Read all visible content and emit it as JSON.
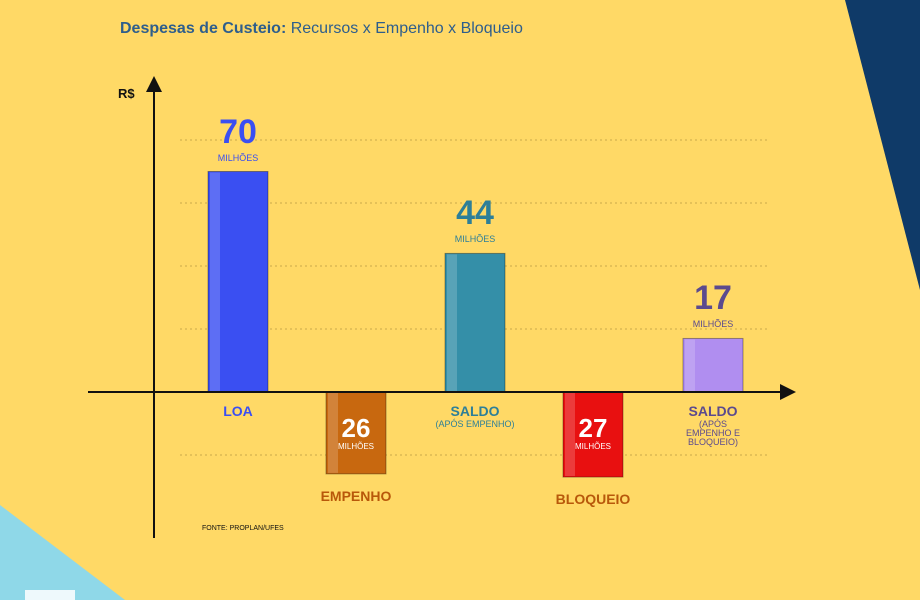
{
  "title_bold": "Despesas de Custeio:",
  "title_rest": " Recursos x Empenho x Bloqueio",
  "source": "FONTE: PROPLAN/UFES",
  "colors": {
    "background": "#ffd966",
    "navy": "#0f3a68",
    "cyan": "#8fd8e8"
  },
  "chart_data": {
    "type": "bar",
    "title": "Despesas de Custeio: Recursos x Empenho x Bloqueio",
    "ylabel": "R$",
    "unit": "MILHÕES",
    "ylim": [
      -40,
      110
    ],
    "grid": true,
    "bars": [
      {
        "value": 70,
        "display": "70",
        "unit_label": "MILHÕES",
        "category": "LOA",
        "sub": "",
        "color": "#3a4ff2",
        "label_color": "#3a4ff2",
        "value_color": "#3a4ff2"
      },
      {
        "value": -26,
        "display": "26",
        "unit_label": "MILHÕES",
        "category": "EMPENHO",
        "sub": "",
        "color": "#c8680f",
        "label_color": "#b8580a",
        "value_color": "#ffffff"
      },
      {
        "value": 44,
        "display": "44",
        "unit_label": "MILHÕES",
        "category": "SALDO",
        "sub": "(APÓS EMPENHO)",
        "color": "#348fa8",
        "label_color": "#2d7f98",
        "value_color": "#2d7f98"
      },
      {
        "value": -27,
        "display": "27",
        "unit_label": "MILHÕES",
        "category": "BLOQUEIO",
        "sub": "",
        "color": "#e81010",
        "label_color": "#b8580a",
        "value_color": "#ffffff"
      },
      {
        "value": 17,
        "display": "17",
        "unit_label": "MILHÕES",
        "category": "SALDO",
        "sub": "(APÓS EMPENHO E BLOQUEIO)",
        "color": "#b08ef0",
        "label_color": "#5b4a8e",
        "value_color": "#5b4a8e"
      }
    ]
  }
}
